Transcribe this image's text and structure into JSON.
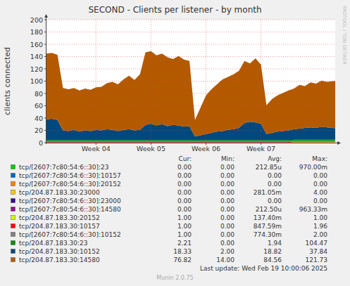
{
  "chart_data": {
    "type": "area",
    "title": "SECOND - Clients per listener - by month",
    "y_label": "clients connected",
    "stacked": true,
    "grid": true,
    "legend": "bottom",
    "x": [
      3.1,
      3.2,
      3.3,
      3.4,
      3.5,
      3.6,
      3.7,
      3.8,
      3.9,
      4,
      4.1,
      4.2,
      4.3,
      4.4,
      4.5,
      4.6,
      4.7,
      4.8,
      4.9,
      5,
      5.1,
      5.2,
      5.3,
      5.4,
      5.5,
      5.6,
      5.7,
      5.8,
      5.9,
      6,
      6.1,
      6.2,
      6.3,
      6.4,
      6.5,
      6.6,
      6.7,
      6.8,
      6.9,
      7,
      7.1,
      7.2,
      7.3,
      7.4,
      7.5,
      7.6,
      7.7,
      7.8,
      7.9,
      8,
      8.1,
      8.2,
      8.3,
      8.35
    ],
    "xlim": [
      3.1,
      8.35
    ],
    "xticks": [
      {
        "value": 4,
        "label": "Week 04"
      },
      {
        "value": 5,
        "label": "Week 05"
      },
      {
        "value": 6,
        "label": "Week 06"
      },
      {
        "value": 7,
        "label": "Week 07"
      }
    ],
    "ylim": [
      0,
      200
    ],
    "yticks": [
      0,
      20,
      40,
      60,
      80,
      100,
      120,
      140,
      160,
      180,
      200
    ],
    "stat_headers": [
      "Cur:",
      "Min:",
      "Avg:",
      "Max:"
    ],
    "series": [
      {
        "name": "tcp/[2607:7c80:54:6::30]:23",
        "color": "#00CC00",
        "stats": [
          "0.00",
          "0.00",
          "212.85u",
          "970.00m"
        ],
        "values": [
          0,
          0,
          0,
          0,
          0,
          0,
          0,
          0,
          0,
          0,
          0,
          0,
          0,
          0,
          0,
          0,
          0,
          0,
          0,
          0,
          0,
          0,
          0,
          0,
          0,
          0,
          0,
          0,
          0,
          0,
          0,
          0,
          0,
          0,
          0,
          0,
          0,
          0,
          0,
          0,
          0,
          0,
          0,
          0,
          0,
          0,
          0,
          0,
          0,
          0,
          0,
          0,
          0,
          0
        ]
      },
      {
        "name": "tcp/[2607:7c80:54:6::30]:10157",
        "color": "#0066B3",
        "stats": [
          "0.00",
          "0.00",
          "0.00",
          "0.00"
        ],
        "values": [
          0,
          0,
          0,
          0,
          0,
          0,
          0,
          0,
          0,
          0,
          0,
          0,
          0,
          0,
          0,
          0,
          0,
          0,
          0,
          0,
          0,
          0,
          0,
          0,
          0,
          0,
          0,
          0,
          0,
          0,
          0,
          0,
          0,
          0,
          0,
          0,
          0,
          0,
          0,
          0,
          0,
          0,
          0,
          0,
          0,
          0,
          0,
          0,
          0,
          0,
          0,
          0,
          0,
          0
        ]
      },
      {
        "name": "tcp/[2607:7c80:54:6::30]:20152",
        "color": "#FF8000",
        "stats": [
          "0.00",
          "0.00",
          "0.00",
          "0.00"
        ],
        "values": [
          0,
          0,
          0,
          0,
          0,
          0,
          0,
          0,
          0,
          0,
          0,
          0,
          0,
          0,
          0,
          0,
          0,
          0,
          0,
          0,
          0,
          0,
          0,
          0,
          0,
          0,
          0,
          0,
          0,
          0,
          0,
          0,
          0,
          0,
          0,
          0,
          0,
          0,
          0,
          0,
          0,
          0,
          0,
          0,
          0,
          0,
          0,
          0,
          0,
          0,
          0,
          0,
          0,
          0
        ]
      },
      {
        "name": "tcp/204.87.183.30:23000",
        "color": "#FFCC00",
        "stats": [
          "0.00",
          "0.00",
          "281.05m",
          "4.00"
        ],
        "values": [
          0,
          0,
          0,
          0,
          0,
          0,
          0,
          0,
          0,
          0,
          0,
          0,
          0,
          0,
          0,
          0,
          0,
          0,
          0,
          0,
          0,
          0,
          0,
          0,
          0,
          0,
          0,
          0,
          0,
          0,
          0,
          0,
          0,
          0,
          0,
          0,
          0,
          0,
          0,
          0,
          0,
          0,
          0,
          0,
          0,
          0,
          0,
          0,
          0,
          0,
          0,
          0,
          0,
          0
        ]
      },
      {
        "name": "tcp/[2607:7c80:54:6::30]:23000",
        "color": "#330099",
        "stats": [
          "0.00",
          "0.00",
          "0.00",
          "0.00"
        ],
        "values": [
          0,
          0,
          0,
          0,
          0,
          0,
          0,
          0,
          0,
          0,
          0,
          0,
          0,
          0,
          0,
          0,
          0,
          0,
          0,
          0,
          0,
          0,
          0,
          0,
          0,
          0,
          0,
          0,
          0,
          0,
          0,
          0,
          0,
          0,
          0,
          0,
          0,
          0,
          0,
          0,
          0,
          0,
          0,
          0,
          0,
          0,
          0,
          0,
          0,
          0,
          0,
          0,
          0,
          0
        ]
      },
      {
        "name": "tcp/[2607:7c80:54:6::30]:14580",
        "color": "#990099",
        "stats": [
          "0.00",
          "0.00",
          "212.50u",
          "963.33m"
        ],
        "values": [
          0,
          0,
          0,
          0,
          0,
          0,
          0,
          0,
          0,
          0,
          0,
          0,
          0,
          0,
          0,
          0,
          0,
          0,
          0,
          0,
          0,
          0,
          0,
          0,
          0,
          0,
          0,
          0,
          0,
          0,
          0,
          0,
          0,
          0,
          0,
          0,
          0,
          0,
          0,
          0,
          0,
          0,
          0,
          0,
          0,
          0,
          0,
          0,
          0,
          0,
          0,
          0,
          0,
          0
        ]
      },
      {
        "name": "tcp/204.87.183.30:20152",
        "color": "#CCFF00",
        "stats": [
          "1.00",
          "0.00",
          "137.40m",
          "1.00"
        ],
        "values": [
          0,
          0,
          0,
          0,
          0,
          0,
          0,
          0,
          0,
          0,
          0,
          0,
          0,
          0,
          0,
          0,
          0,
          0,
          0,
          0,
          0,
          0,
          0,
          0,
          0,
          0,
          0,
          0,
          0,
          0,
          0,
          0,
          0,
          0,
          0,
          0,
          0,
          0,
          0,
          0,
          0,
          0,
          0,
          0,
          0,
          1,
          1,
          1,
          1,
          1,
          1,
          1,
          1,
          1
        ]
      },
      {
        "name": "tcp/204.87.183.30:10157",
        "color": "#FF0000",
        "stats": [
          "1.00",
          "0.00",
          "847.59m",
          "1.96"
        ],
        "values": [
          1,
          1,
          1,
          1,
          1,
          1,
          1,
          1,
          1,
          1,
          1,
          1,
          1,
          1,
          1,
          1,
          1,
          1,
          1,
          1,
          1,
          1,
          1,
          1,
          1,
          1,
          1,
          1,
          1,
          1,
          1,
          1,
          1,
          1,
          1,
          1,
          1,
          1,
          1,
          1,
          1,
          1,
          1,
          1,
          1,
          1,
          1,
          1,
          1,
          1,
          1,
          1,
          1,
          1
        ]
      },
      {
        "name": "tcp/[2607:7c80:54:6::30]:10152",
        "color": "#808080",
        "stats": [
          "1.00",
          "0.00",
          "774.30m",
          "2.00"
        ],
        "values": [
          1,
          1,
          1,
          1,
          1,
          1,
          1,
          1,
          1,
          1,
          1,
          1,
          1,
          1,
          1,
          1,
          1,
          1,
          1,
          1,
          1,
          1,
          1,
          1,
          1,
          1,
          1,
          1,
          1,
          1,
          1,
          1,
          1,
          1,
          1,
          1,
          1,
          1,
          1,
          1,
          1,
          1,
          1,
          1,
          1,
          1,
          1,
          1,
          1,
          1,
          1,
          1,
          1,
          1
        ]
      },
      {
        "name": "tcp/204.87.183.30:23",
        "color": "#008F00",
        "stats": [
          "2.21",
          "0.00",
          "1.94",
          "104.47"
        ],
        "values": [
          2,
          2,
          2,
          2,
          2,
          2,
          2,
          2,
          2,
          2,
          2,
          2,
          2,
          2,
          2,
          2,
          2,
          2,
          2,
          2,
          2,
          2,
          2,
          2,
          2,
          2,
          2,
          2,
          2,
          2,
          2,
          2,
          2,
          2,
          2,
          2,
          2,
          2,
          2,
          2,
          2,
          2,
          2,
          2,
          2,
          2,
          2,
          2,
          2,
          2,
          2,
          2,
          2,
          2.21
        ]
      },
      {
        "name": "tcp/204.87.183.30:10152",
        "color": "#00487D",
        "stats": [
          "18.33",
          "2.00",
          "18.82",
          "37.84"
        ],
        "values": [
          34,
          35,
          33,
          16,
          15,
          17,
          14,
          16,
          15,
          17,
          16,
          18,
          17,
          15,
          17,
          18,
          16,
          17,
          25,
          27,
          24,
          26,
          23,
          25,
          24,
          22,
          23,
          6,
          8,
          10,
          12,
          14,
          15,
          17,
          18,
          20,
          28,
          30,
          29,
          27,
          10,
          12,
          14,
          15,
          16,
          17,
          18,
          19,
          20,
          19,
          21,
          20,
          19,
          18.33
        ]
      },
      {
        "name": "tcp/204.87.183.30:14580",
        "color": "#B35A00",
        "stats": [
          "76.82",
          "14.00",
          "84.56",
          "121.73"
        ],
        "values": [
          107,
          107,
          106,
          69,
          68,
          68,
          67,
          68,
          67,
          69,
          71,
          75,
          78,
          76,
          82,
          87,
          82,
          90,
          118,
          118,
          114,
          115,
          112,
          107,
          113,
          109,
          106,
          27,
          45,
          63,
          71,
          77,
          84,
          86,
          89,
          93,
          101,
          95,
          104,
          96,
          47,
          55,
          59,
          62,
          65,
          66,
          71,
          68,
          73,
          72,
          75,
          74,
          76,
          76.82
        ]
      }
    ],
    "last_update": "Last update: Wed Feb 19 10:00:06 2025",
    "footer": "Munin 2.0.75",
    "watermark": "RRDTOOL / TOBI OETIKER"
  }
}
